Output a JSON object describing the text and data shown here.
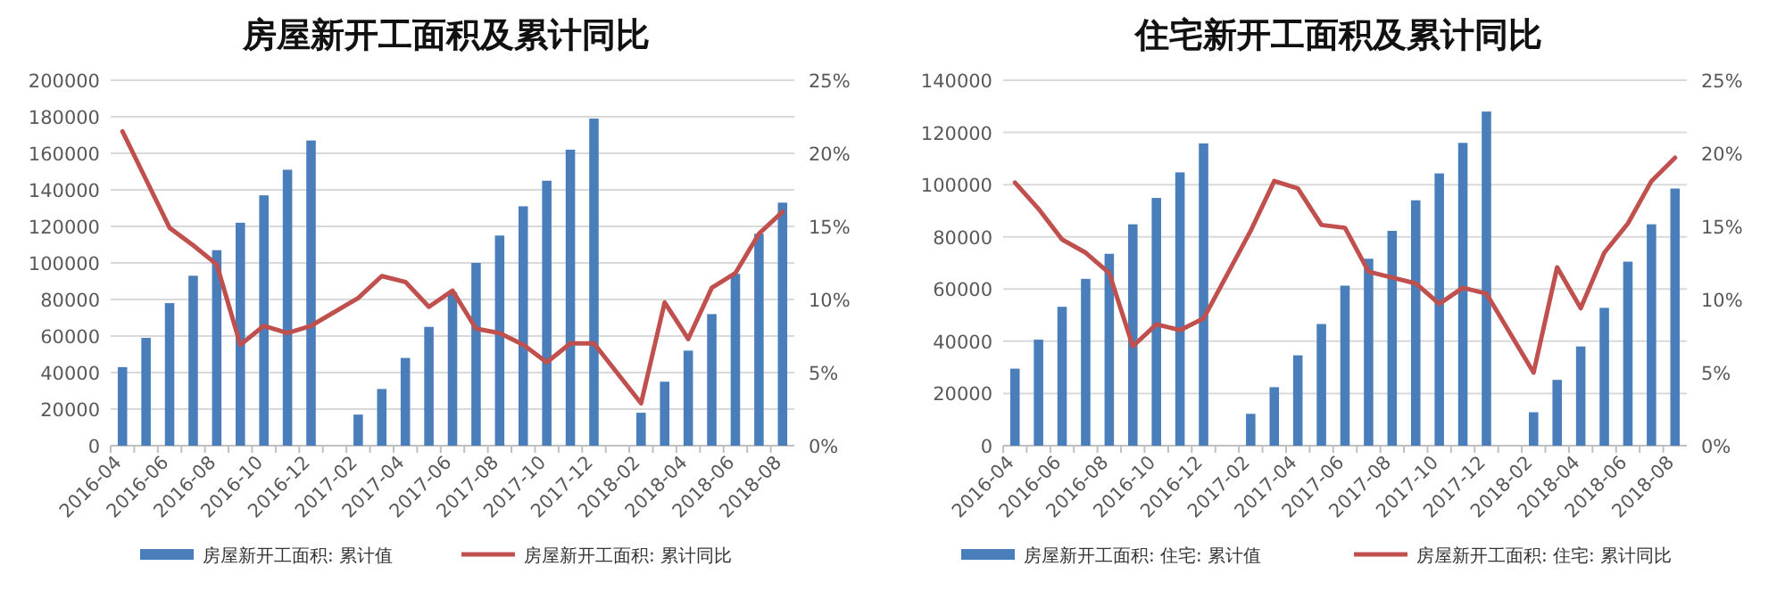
{
  "chart_data": [
    {
      "type": "bar",
      "title": "房屋新开工面积及累计同比",
      "categories": [
        "2016-04",
        null,
        "2016-06",
        null,
        "2016-08",
        null,
        "2016-10",
        null,
        "2016-12",
        null,
        "2017-02",
        null,
        "2017-04",
        null,
        "2017-06",
        null,
        "2017-08",
        null,
        "2017-10",
        null,
        "2017-12",
        null,
        "2018-02",
        null,
        "2018-04",
        null,
        "2018-06",
        null,
        "2018-08"
      ],
      "series": [
        {
          "name": "房屋新开工面积: 累计值",
          "color": "#4a7ebb",
          "values": [
            43000,
            59000,
            78000,
            93000,
            107000,
            122000,
            137000,
            151000,
            167000,
            null,
            17000,
            31000,
            48000,
            65000,
            84000,
            100000,
            115000,
            131000,
            145000,
            162000,
            179000,
            null,
            18000,
            35000,
            52000,
            72000,
            94000,
            116000,
            133000
          ]
        },
        {
          "name": "房屋新开工面积: 累计同比",
          "type": "line",
          "axis": "y2",
          "color": "#c0504d",
          "values": [
            21.5,
            18.2,
            14.9,
            13.7,
            12.4,
            6.9,
            8.2,
            7.7,
            8.2,
            null,
            10.1,
            11.6,
            11.2,
            9.5,
            10.6,
            8.0,
            7.7,
            6.9,
            5.7,
            7.0,
            7.0,
            null,
            2.9,
            9.8,
            7.3,
            10.8,
            11.8,
            14.5,
            16.0
          ]
        }
      ],
      "ylim": [
        0,
        200000
      ],
      "yticks": [
        0,
        20000,
        40000,
        60000,
        80000,
        100000,
        120000,
        140000,
        160000,
        180000,
        200000
      ],
      "y2lim": [
        0,
        25
      ],
      "y2ticks": [
        {
          "value": 0,
          "label": "0%"
        },
        {
          "value": 5,
          "label": "5%"
        },
        {
          "value": 10,
          "label": "10%"
        },
        {
          "value": 15,
          "label": "15%"
        },
        {
          "value": 20,
          "label": "20%"
        },
        {
          "value": 25,
          "label": "25%"
        }
      ],
      "grid": "y",
      "legend": "bottom"
    },
    {
      "type": "bar",
      "title": "住宅新开工面积及累计同比",
      "categories": [
        "2016-04",
        null,
        "2016-06",
        null,
        "2016-08",
        null,
        "2016-10",
        null,
        "2016-12",
        null,
        "2017-02",
        null,
        "2017-04",
        null,
        "2017-06",
        null,
        "2017-08",
        null,
        "2017-10",
        null,
        "2017-12",
        null,
        "2018-02",
        null,
        "2018-04",
        null,
        "2018-06",
        null,
        "2018-08"
      ],
      "series": [
        {
          "name": "房屋新开工面积: 住宅: 累计值",
          "color": "#4a7ebb",
          "values": [
            29500,
            40600,
            53200,
            63900,
            73500,
            84800,
            94900,
            104700,
            115800,
            null,
            12200,
            22400,
            34600,
            46600,
            61300,
            71600,
            82300,
            94000,
            104300,
            116000,
            128000,
            null,
            12800,
            25200,
            38000,
            52800,
            70500,
            84800,
            98500
          ]
        },
        {
          "name": "房屋新开工面积: 住宅: 累计同比",
          "type": "line",
          "axis": "y2",
          "color": "#c0504d",
          "values": [
            18.0,
            16.2,
            14.1,
            13.2,
            11.8,
            6.8,
            8.3,
            7.9,
            8.7,
            null,
            14.7,
            18.1,
            17.6,
            15.1,
            14.9,
            11.9,
            11.5,
            11.1,
            9.7,
            10.8,
            10.4,
            null,
            5.0,
            12.2,
            9.4,
            13.2,
            15.2,
            18.1,
            19.7
          ]
        }
      ],
      "ylim": [
        0,
        140000
      ],
      "yticks": [
        0,
        20000,
        40000,
        60000,
        80000,
        100000,
        120000,
        140000
      ],
      "y2lim": [
        0,
        25
      ],
      "y2ticks": [
        {
          "value": 0,
          "label": "0%"
        },
        {
          "value": 5,
          "label": "5%"
        },
        {
          "value": 10,
          "label": "10%"
        },
        {
          "value": 15,
          "label": "15%"
        },
        {
          "value": 20,
          "label": "20%"
        },
        {
          "value": 25,
          "label": "25%"
        }
      ],
      "grid": "y",
      "legend": "bottom"
    }
  ]
}
